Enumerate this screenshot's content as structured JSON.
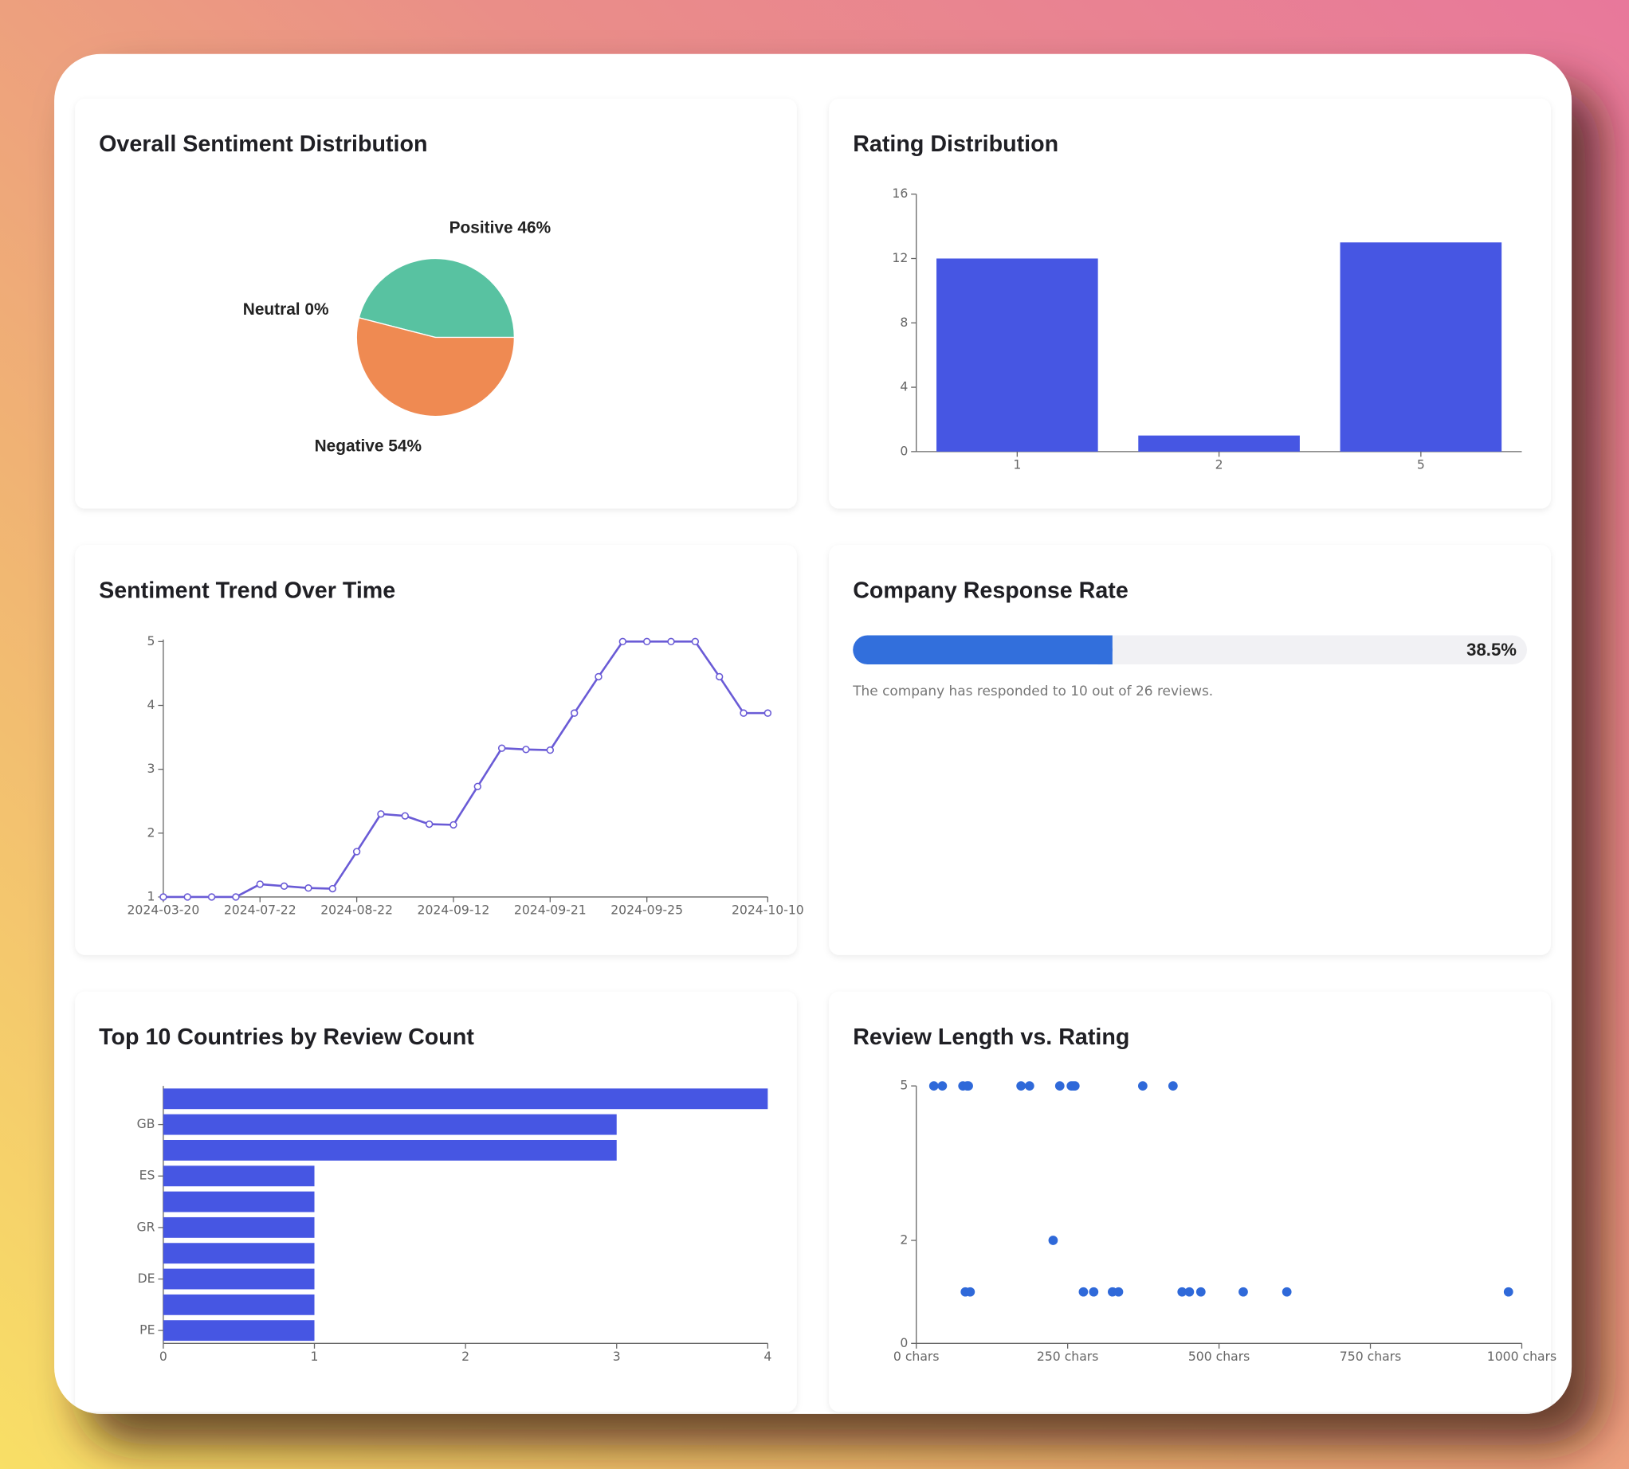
{
  "chart_data": [
    {
      "type": "pie",
      "title": "Overall Sentiment Distribution",
      "categories": [
        "Positive",
        "Neutral",
        "Negative"
      ],
      "values": [
        46,
        0,
        54
      ],
      "value_labels": [
        "46%",
        "0%",
        "54%"
      ],
      "colors": [
        "#58c2a1",
        "#8884d8",
        "#ef8a52"
      ]
    },
    {
      "type": "bar",
      "title": "Rating Distribution",
      "categories": [
        "1",
        "2",
        "5"
      ],
      "values": [
        12,
        1,
        13
      ],
      "color": "#4656e3",
      "ylim": [
        0,
        16
      ],
      "yticks": [
        0,
        4,
        8,
        12,
        16
      ]
    },
    {
      "type": "line",
      "title": "Sentiment Trend Over Time",
      "categories": [
        "2024-03-20",
        null,
        null,
        null,
        "2024-07-22",
        null,
        null,
        null,
        "2024-08-22",
        null,
        null,
        null,
        "2024-09-12",
        null,
        null,
        null,
        "2024-09-21",
        null,
        null,
        null,
        "2024-09-25",
        null,
        null,
        null,
        null,
        "2024-10-10"
      ],
      "values": [
        1,
        1,
        1,
        1,
        1.2,
        1.17,
        1.14,
        1.13,
        1.71,
        2.3,
        2.27,
        2.14,
        2.13,
        2.73,
        3.33,
        3.31,
        3.3,
        3.88,
        4.45,
        5,
        5,
        5,
        5,
        4.45,
        3.88,
        3.88
      ],
      "color": "#6a5bd6",
      "ylim": [
        1,
        5
      ],
      "yticks": [
        1,
        2,
        3,
        4,
        5
      ]
    },
    {
      "type": "progress",
      "title": "Company Response Rate",
      "value": 38.5,
      "value_label": "38.5%",
      "xlim": [
        0,
        100
      ],
      "note": "The company has responded to 10 out of 26 reviews.",
      "color": "#326fdc"
    },
    {
      "type": "hbar",
      "title": "Top 10 Countries by Review Count",
      "categories": [
        null,
        "GB",
        null,
        "ES",
        null,
        "GR",
        null,
        "DE",
        null,
        "PE"
      ],
      "values": [
        4,
        3,
        3,
        1,
        1,
        1,
        1,
        1,
        1,
        1
      ],
      "color": "#4656e3",
      "xlim": [
        0,
        4
      ],
      "xticks": [
        0,
        1,
        2,
        3,
        4
      ]
    },
    {
      "type": "scatter",
      "title": "Review Length vs. Rating",
      "x": [
        29,
        43,
        77,
        84,
        86,
        173,
        187,
        237,
        256,
        259,
        262,
        374,
        424,
        226,
        81,
        89,
        276,
        293,
        324,
        334,
        439,
        451,
        470,
        540,
        612,
        978
      ],
      "values": [
        5,
        5,
        5,
        5,
        5,
        5,
        5,
        5,
        5,
        5,
        5,
        5,
        5,
        2,
        1,
        1,
        1,
        1,
        1,
        1,
        1,
        1,
        1,
        1,
        1,
        1
      ],
      "color": "#2f69d9",
      "xlim": [
        0,
        1000
      ],
      "xticks": [
        {
          "value": 0,
          "label": "0 chars"
        },
        {
          "value": 250,
          "label": "250 chars"
        },
        {
          "value": 500,
          "label": "500 chars"
        },
        {
          "value": 750,
          "label": "750 chars"
        },
        {
          "value": 1000,
          "label": "1000 chars"
        }
      ],
      "ylim": [
        0,
        5
      ],
      "yticks": [
        0,
        2,
        5
      ]
    }
  ]
}
